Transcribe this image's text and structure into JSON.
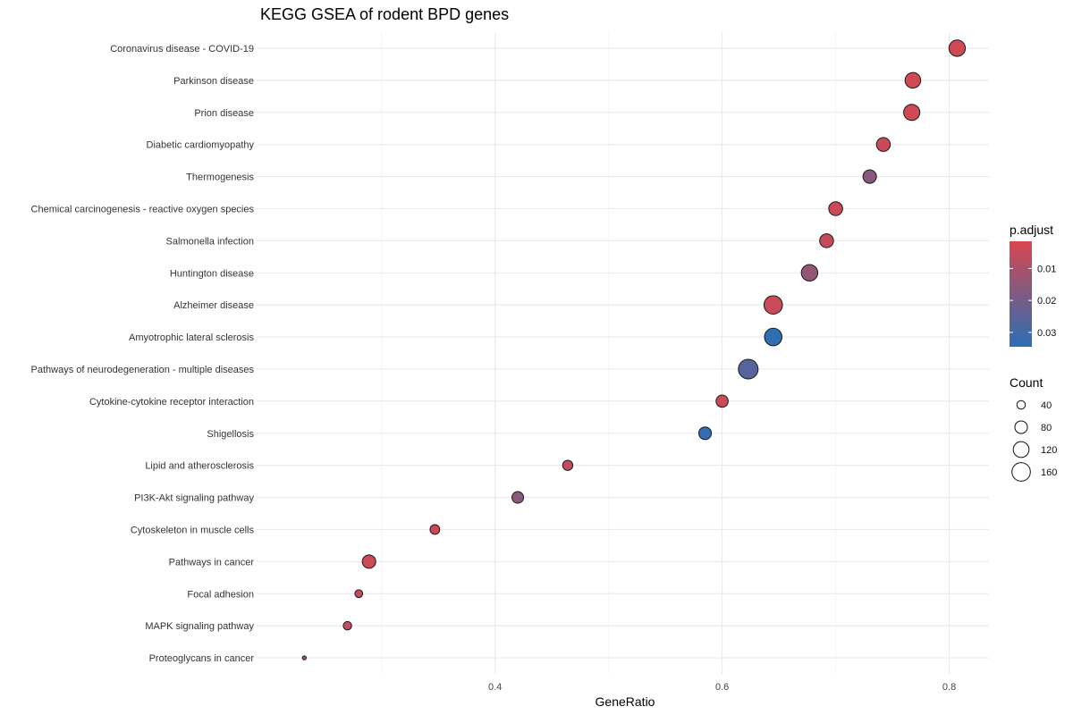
{
  "chart_data": {
    "type": "scatter",
    "title": "KEGG GSEA of rodent BPD genes",
    "xlabel": "GeneRatio",
    "ylabel": "",
    "xlim": [
      0.19,
      0.835
    ],
    "x_ticks": [
      0.4,
      0.6,
      0.8
    ],
    "x_tick_labels": [
      "0.4",
      "0.6",
      "0.8"
    ],
    "x_minor_ticks": [
      0.3,
      0.5,
      0.7
    ],
    "grid": true,
    "legend_position": "right",
    "color_legend": {
      "title": "p.adjust",
      "ticks": [
        0.01,
        0.02,
        0.03
      ],
      "tick_labels": [
        "0.01",
        "0.02",
        "0.03"
      ],
      "range": [
        0.0015,
        0.0345
      ],
      "low_color": "#D9474F",
      "high_color": "#2C6FB5"
    },
    "size_legend": {
      "title": "Count",
      "values": [
        40,
        80,
        120,
        160
      ],
      "labels": [
        "40",
        "80",
        "120",
        "160"
      ]
    },
    "points": [
      {
        "term": "Coronavirus disease - COVID-19",
        "gene_ratio": 0.807,
        "count": 128,
        "p_adjust": 0.003
      },
      {
        "term": "Parkinson disease",
        "gene_ratio": 0.768,
        "count": 118,
        "p_adjust": 0.003
      },
      {
        "term": "Prion disease",
        "gene_ratio": 0.767,
        "count": 125,
        "p_adjust": 0.003
      },
      {
        "term": "Diabetic cardiomyopathy",
        "gene_ratio": 0.742,
        "count": 95,
        "p_adjust": 0.004
      },
      {
        "term": "Thermogenesis",
        "gene_ratio": 0.73,
        "count": 90,
        "p_adjust": 0.016
      },
      {
        "term": "Chemical carcinogenesis - reactive oxygen species",
        "gene_ratio": 0.7,
        "count": 95,
        "p_adjust": 0.004
      },
      {
        "term": "Salmonella infection",
        "gene_ratio": 0.692,
        "count": 95,
        "p_adjust": 0.005
      },
      {
        "term": "Huntington disease",
        "gene_ratio": 0.677,
        "count": 130,
        "p_adjust": 0.014
      },
      {
        "term": "Alzheimer disease",
        "gene_ratio": 0.645,
        "count": 160,
        "p_adjust": 0.004
      },
      {
        "term": "Amyotrophic lateral sclerosis",
        "gene_ratio": 0.645,
        "count": 145,
        "p_adjust": 0.034
      },
      {
        "term": "Pathways of neurodegeneration - multiple diseases",
        "gene_ratio": 0.623,
        "count": 180,
        "p_adjust": 0.026
      },
      {
        "term": "Cytokine-cytokine receptor interaction",
        "gene_ratio": 0.6,
        "count": 75,
        "p_adjust": 0.004
      },
      {
        "term": "Shigellosis",
        "gene_ratio": 0.585,
        "count": 80,
        "p_adjust": 0.033
      },
      {
        "term": "Lipid and atherosclerosis",
        "gene_ratio": 0.464,
        "count": 55,
        "p_adjust": 0.006
      },
      {
        "term": "PI3K-Akt signaling pathway",
        "gene_ratio": 0.42,
        "count": 70,
        "p_adjust": 0.016
      },
      {
        "term": "Cytoskeleton in muscle cells",
        "gene_ratio": 0.347,
        "count": 50,
        "p_adjust": 0.004
      },
      {
        "term": "Pathways in cancer",
        "gene_ratio": 0.289,
        "count": 90,
        "p_adjust": 0.004
      },
      {
        "term": "Focal adhesion",
        "gene_ratio": 0.28,
        "count": 35,
        "p_adjust": 0.006
      },
      {
        "term": "MAPK signaling pathway",
        "gene_ratio": 0.27,
        "count": 40,
        "p_adjust": 0.006
      },
      {
        "term": "Proteoglycans in cancer",
        "gene_ratio": 0.232,
        "count": 12,
        "p_adjust": 0.007
      }
    ]
  }
}
